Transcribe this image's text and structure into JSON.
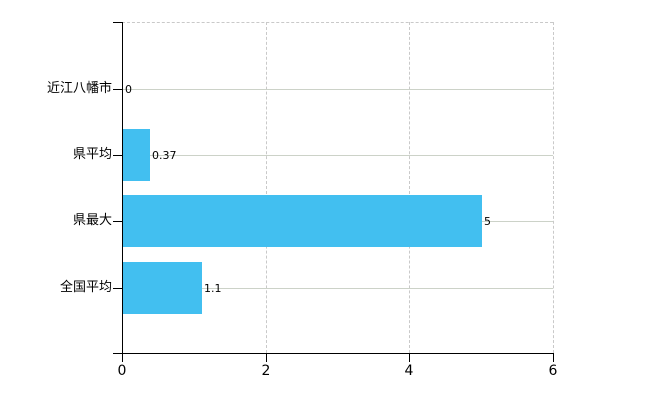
{
  "chart_data": {
    "type": "bar",
    "orientation": "horizontal",
    "title": "",
    "xlabel": "",
    "ylabel": "",
    "categories": [
      "近江八幡市",
      "県平均",
      "県最大",
      "全国平均"
    ],
    "values": [
      0,
      0.37,
      5,
      1.1
    ],
    "value_labels": [
      "0",
      "0.37",
      "5",
      "1.1"
    ],
    "xlim": [
      0,
      6
    ],
    "x_tick_values": [
      0,
      2,
      4,
      6
    ],
    "x_tick_labels": [
      "0",
      "2",
      "4",
      "6"
    ],
    "grid": true,
    "legend": false,
    "colors": {
      "bar": "#42bff0",
      "axis": "#000000",
      "dashed_grid": "#c9c9c9",
      "category_line": "#ccd2c8",
      "text": "#000000",
      "background": "#ffffff"
    }
  }
}
